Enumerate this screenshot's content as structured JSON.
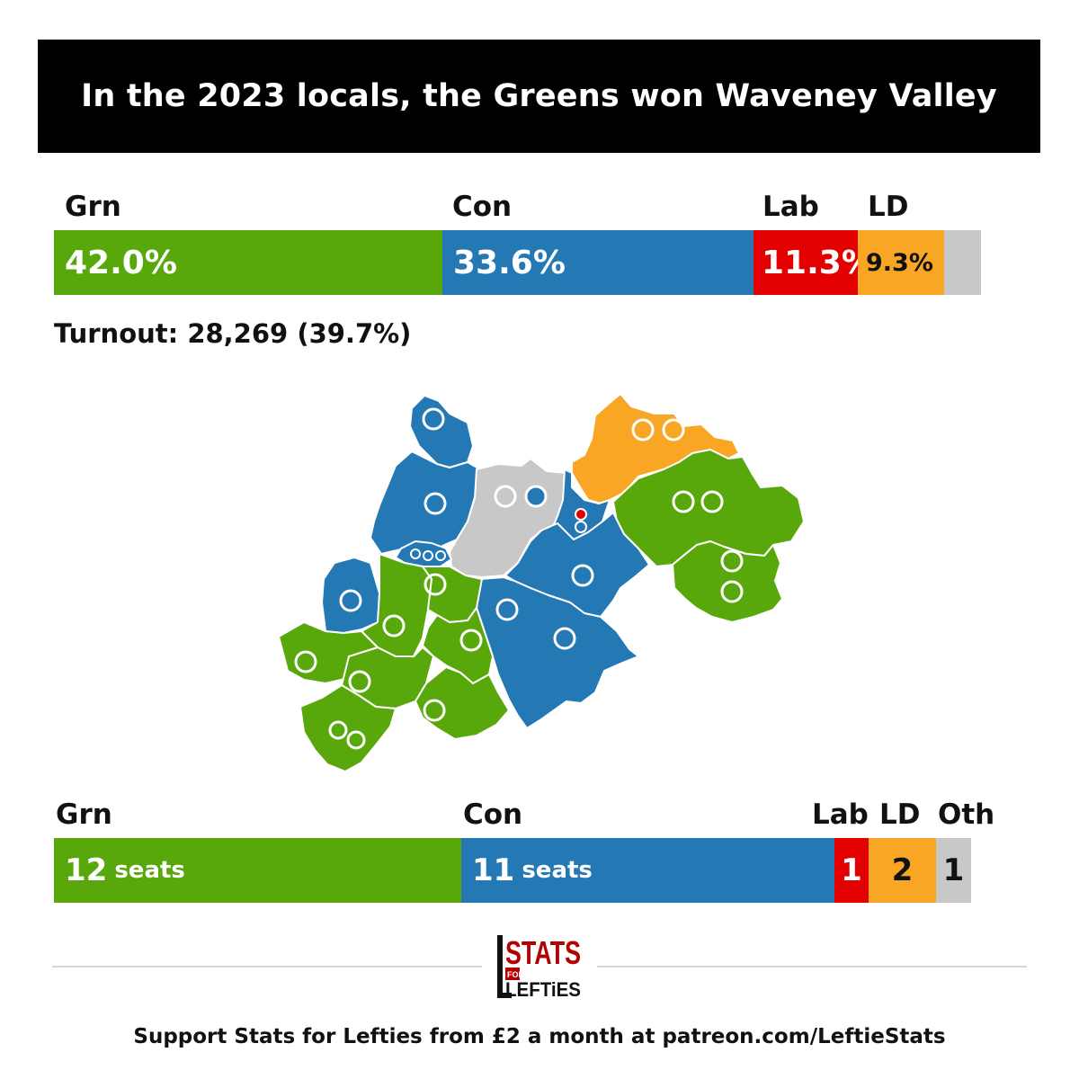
{
  "title": "In the 2023 locals, the Greens won Waveney Valley",
  "colors": {
    "grn": "#58a80c",
    "con": "#2478b4",
    "lab": "#e20000",
    "ld": "#f8a623",
    "oth": "#c8c8c8"
  },
  "vote_share": {
    "parties": [
      {
        "label": "Grn",
        "value_label": "42.0%",
        "share": 42.0,
        "color": "#58a80c"
      },
      {
        "label": "Con",
        "value_label": "33.6%",
        "share": 33.6,
        "color": "#2478b4"
      },
      {
        "label": "Lab",
        "value_label": "11.3%",
        "share": 11.3,
        "color": "#e20000"
      },
      {
        "label": "LD",
        "value_label": "9.3%",
        "share": 9.3,
        "color": "#f8a623"
      },
      {
        "label": "",
        "value_label": "",
        "share": 3.8,
        "color": "#c8c8c8"
      }
    ]
  },
  "turnout": "Turnout: 28,269 (39.7%)",
  "seats": {
    "parties": [
      {
        "label": "Grn",
        "value": "12",
        "unit": "seats",
        "count": 12,
        "color": "#58a80c"
      },
      {
        "label": "Con",
        "value": "11",
        "unit": "seats",
        "count": 11,
        "color": "#2478b4"
      },
      {
        "label": "Lab",
        "value": "1",
        "unit": "",
        "count": 1,
        "color": "#e20000"
      },
      {
        "label": "LD",
        "value": "2",
        "unit": "",
        "count": 2,
        "color": "#f8a623"
      },
      {
        "label": "Oth",
        "value": "1",
        "unit": "",
        "count": 1,
        "color": "#c8c8c8"
      }
    ]
  },
  "logo": {
    "line1": "STATS",
    "line2": "FOR",
    "line3": "LEFTiES"
  },
  "footer": "Support Stats for Lefties from £2 a month at patreon.com/LeftieStats"
}
